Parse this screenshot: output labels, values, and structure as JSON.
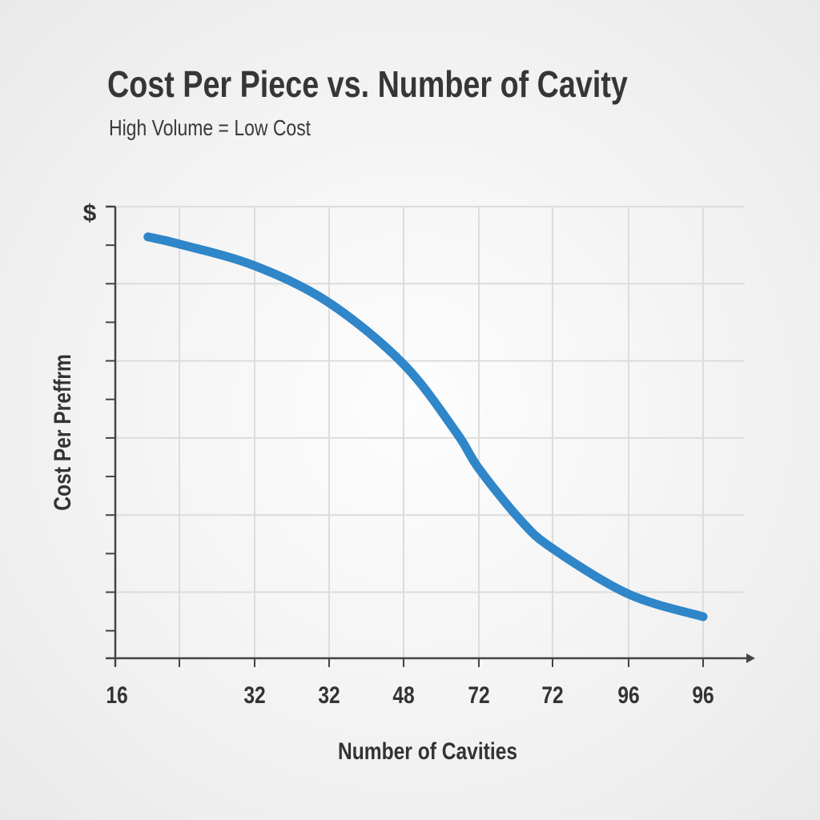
{
  "title": "Cost Per Piece vs. Number of Cavity",
  "subtitle": "High Volume = Low Cost",
  "chart_data": {
    "type": "line",
    "title": "Cost Per Piece vs. Number of Cavity",
    "subtitle": "High Volume = Low Cost",
    "xlabel": "Number of Cavities",
    "ylabel": "Cost Per Preffrm",
    "y_unit_label": "$",
    "categories": [
      "16",
      "",
      "32",
      "32",
      "48",
      "72",
      "72",
      "96",
      "96"
    ],
    "xlim": [
      0,
      8
    ],
    "ylim": [
      0,
      100
    ],
    "grid": true,
    "series": [
      {
        "color": "#2f86c8",
        "x": [
          0.51,
          1,
          2,
          3,
          4,
          4.7,
          5,
          5.57,
          6,
          7,
          8
        ],
        "y": [
          93.3,
          91.7,
          86.9,
          78.7,
          65.1,
          50,
          42,
          30.5,
          24.3,
          14.2,
          9.2
        ]
      }
    ]
  }
}
